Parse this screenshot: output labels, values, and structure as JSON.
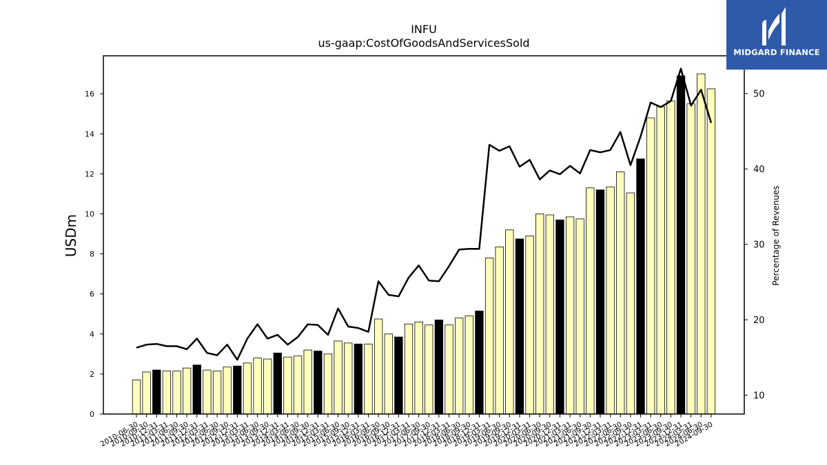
{
  "brand": {
    "name": "MIDGARD FINANCE",
    "bg_color": "#2f5aa8"
  },
  "chart_data": {
    "type": "bar",
    "title": "INFU",
    "subtitle": "us-gaap:CostOfGoodsAndServicesSold",
    "ylabel": "USDm",
    "y2label": "Percentage of Revenues",
    "ylim": [
      0,
      17.9
    ],
    "y2lim": [
      7.5,
      55.0
    ],
    "yticks": [
      0,
      2,
      4,
      6,
      8,
      10,
      12,
      14,
      16
    ],
    "y2ticks": [
      10,
      20,
      30,
      40,
      50
    ],
    "bar_color_quarter": "#ffffbb",
    "bar_color_fiscal_year": "#000000",
    "line_color": "#000000",
    "categories": [
      "2010-06-30",
      "2010-09-30",
      "2010-12-31",
      "2011-03-31",
      "2011-06-30",
      "2011-09-30",
      "2011-12-31",
      "2012-03-31",
      "2012-06-30",
      "2012-09-30",
      "2012-12-31",
      "2013-03-31",
      "2013-06-30",
      "2013-09-30",
      "2013-12-31",
      "2014-03-31",
      "2014-06-30",
      "2014-09-30",
      "2014-12-31",
      "2015-03-31",
      "2015-06-30",
      "2015-09-30",
      "2015-12-31",
      "2016-03-31",
      "2016-06-30",
      "2016-09-30",
      "2016-12-31",
      "2017-03-31",
      "2017-06-30",
      "2017-09-30",
      "2017-12-31",
      "2018-03-31",
      "2018-06-30",
      "2018-09-30",
      "2018-12-31",
      "2019-03-31",
      "2019-06-30",
      "2019-09-30",
      "2019-12-31",
      "2020-03-31",
      "2020-06-30",
      "2020-09-30",
      "2020-12-31",
      "2021-03-31",
      "2021-06-30",
      "2021-09-30",
      "2021-12-31",
      "2022-03-31",
      "2022-06-30",
      "2022-09-30",
      "2022-12-31",
      "2023-03-31",
      "2023-06-30",
      "2023-09-30",
      "2023-12-31",
      "2024-03-31",
      "2024-06-30",
      "2024-09-30"
    ],
    "series": [
      {
        "values": [
          1.7,
          2.1,
          2.2,
          2.15,
          2.15,
          2.3,
          2.45,
          2.2,
          2.15,
          2.35,
          2.4,
          2.55,
          2.8,
          2.75,
          3.05,
          2.85,
          2.9,
          3.2,
          3.15,
          3.0,
          3.65,
          3.55,
          3.5,
          3.5,
          4.75,
          4.0,
          3.85,
          4.5,
          4.6,
          4.45,
          4.7,
          4.45,
          4.8,
          4.9,
          5.15,
          7.8,
          8.35,
          9.2,
          8.75,
          8.9,
          10.0,
          9.95,
          9.7,
          9.85,
          9.75,
          11.3,
          11.2,
          11.35,
          12.1,
          11.05,
          12.75,
          14.8,
          15.35,
          15.65,
          16.9,
          15.5,
          17.0,
          16.25
        ],
        "fiscal_year_end": [
          false,
          false,
          true,
          false,
          false,
          false,
          true,
          false,
          false,
          false,
          true,
          false,
          false,
          false,
          true,
          false,
          false,
          false,
          true,
          false,
          false,
          false,
          true,
          false,
          false,
          false,
          true,
          false,
          false,
          false,
          true,
          false,
          false,
          false,
          true,
          false,
          false,
          false,
          true,
          false,
          false,
          false,
          true,
          false,
          false,
          false,
          true,
          false,
          false,
          false,
          true,
          false,
          false,
          false,
          true,
          false,
          false,
          false
        ]
      },
      {
        "values": [
          16.3,
          16.7,
          16.8,
          16.5,
          16.5,
          16.1,
          17.5,
          15.6,
          15.3,
          16.7,
          14.7,
          17.5,
          19.4,
          17.5,
          18.0,
          16.7,
          17.7,
          19.4,
          19.3,
          18.0,
          21.5,
          19.1,
          18.9,
          18.4,
          25.1,
          23.3,
          23.1,
          25.6,
          27.2,
          25.2,
          25.1,
          27.1,
          29.3,
          29.4,
          29.4,
          43.2,
          42.4,
          43.0,
          40.3,
          41.2,
          38.6,
          39.8,
          39.3,
          40.4,
          39.4,
          42.5,
          42.2,
          42.5,
          44.9,
          40.5,
          44.3,
          48.8,
          48.2,
          49.0,
          53.3,
          48.4,
          50.5,
          46.1
        ]
      }
    ]
  }
}
